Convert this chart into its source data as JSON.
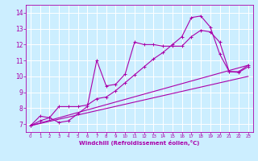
{
  "xlabel": "Windchill (Refroidissement éolien,°C)",
  "background_color": "#cceeff",
  "grid_color": "#ffffff",
  "line_color": "#aa00aa",
  "xlim": [
    -0.5,
    23.5
  ],
  "ylim": [
    6.5,
    14.5
  ],
  "xticks": [
    0,
    1,
    2,
    3,
    4,
    5,
    6,
    7,
    8,
    9,
    10,
    11,
    12,
    13,
    14,
    15,
    16,
    17,
    18,
    19,
    20,
    21,
    22,
    23
  ],
  "yticks": [
    7,
    8,
    9,
    10,
    11,
    12,
    13,
    14
  ],
  "series1_x": [
    0,
    1,
    2,
    3,
    4,
    5,
    6,
    7,
    8,
    9,
    10,
    11,
    12,
    13,
    14,
    15,
    16,
    17,
    18,
    19,
    20,
    21,
    22,
    23
  ],
  "series1_y": [
    6.9,
    7.5,
    7.4,
    7.1,
    7.2,
    7.65,
    8.1,
    11.0,
    9.4,
    9.5,
    10.15,
    12.15,
    12.0,
    12.0,
    11.9,
    11.9,
    11.9,
    12.5,
    12.9,
    12.8,
    12.15,
    10.3,
    10.25,
    10.6
  ],
  "series2_x": [
    0,
    1,
    2,
    3,
    4,
    5,
    6,
    7,
    8,
    9,
    10,
    11,
    12,
    13,
    14,
    15,
    16,
    17,
    18,
    19,
    20,
    21,
    22,
    23
  ],
  "series2_y": [
    6.9,
    7.2,
    7.4,
    8.1,
    8.1,
    8.1,
    8.2,
    8.6,
    8.7,
    9.1,
    9.6,
    10.1,
    10.6,
    11.1,
    11.5,
    12.0,
    12.5,
    13.7,
    13.8,
    13.1,
    11.4,
    10.3,
    10.3,
    10.7
  ],
  "series3_x": [
    0,
    23
  ],
  "series3_y": [
    6.9,
    10.7
  ],
  "series4_x": [
    0,
    23
  ],
  "series4_y": [
    6.9,
    10.0
  ]
}
